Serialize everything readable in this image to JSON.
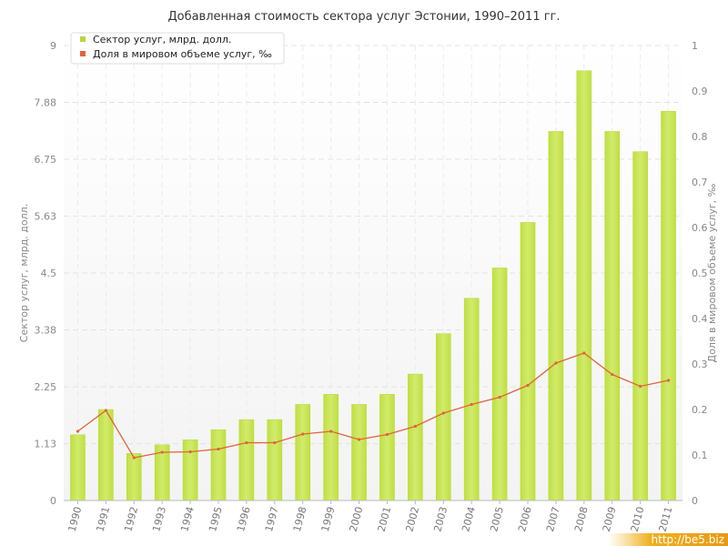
{
  "chart_data": {
    "type": "bar",
    "title": "Добавленная стоимость сектора услуг Эстонии, 1990–2011 гг.",
    "categories": [
      "1990",
      "1991",
      "1992",
      "1993",
      "1994",
      "1995",
      "1996",
      "1997",
      "1998",
      "1999",
      "2000",
      "2001",
      "2002",
      "2003",
      "2004",
      "2005",
      "2006",
      "2007",
      "2008",
      "2009",
      "2010",
      "2011"
    ],
    "series": [
      {
        "name": "Сектор услуг, млрд. долл.",
        "type": "bar",
        "axis": "left",
        "color": "#b5d935",
        "values": [
          1.3,
          1.8,
          0.93,
          1.1,
          1.2,
          1.4,
          1.6,
          1.6,
          1.9,
          2.1,
          1.9,
          2.1,
          2.5,
          3.3,
          4.0,
          4.6,
          5.5,
          7.3,
          8.5,
          7.3,
          6.9,
          7.7
        ]
      },
      {
        "name": "Доля в мировом объеме услуг, ‰",
        "type": "line",
        "axis": "right",
        "color": "#e0643a",
        "values": [
          0.152,
          0.198,
          0.094,
          0.106,
          0.107,
          0.113,
          0.127,
          0.127,
          0.146,
          0.152,
          0.134,
          0.145,
          0.163,
          0.192,
          0.211,
          0.227,
          0.253,
          0.302,
          0.324,
          0.277,
          0.251,
          0.264
        ]
      }
    ],
    "ylabel": "Сектор услуг, млрд. долл.",
    "y2label": "Доля в мировом объеме услуг, ‰",
    "ylim": [
      0,
      9
    ],
    "y2lim": [
      0,
      1
    ],
    "y_ticks": [
      "0",
      "1.13",
      "2.25",
      "3.38",
      "4.5",
      "5.63",
      "6.75",
      "7.88",
      "9"
    ],
    "y2_ticks": [
      "0",
      "0.1",
      "0.2",
      "0.3",
      "0.4",
      "0.5",
      "0.6",
      "0.7",
      "0.8",
      "0.9",
      "1"
    ],
    "grid": true,
    "legend_position": "top-left"
  },
  "watermark": "http://be5.biz"
}
